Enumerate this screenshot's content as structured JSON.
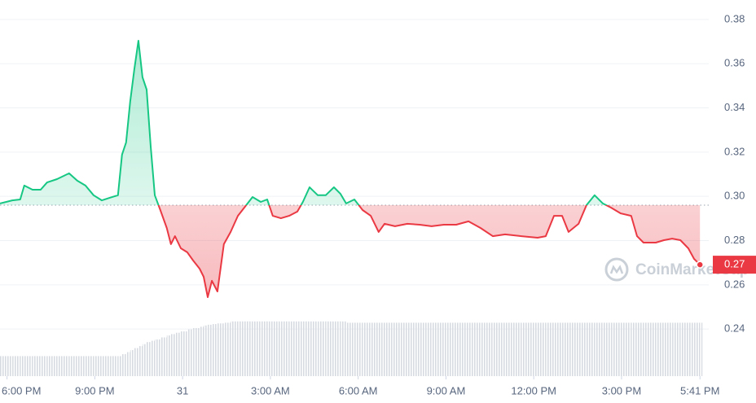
{
  "chart_data": {
    "type": "line",
    "watermark": "CoinMarketCap",
    "up_color": "#16c784",
    "down_color": "#ea3943",
    "reference": 0.296,
    "current_label": "0.27",
    "grid": true,
    "ylim": [
      0.2187,
      0.3888
    ],
    "yticks": [
      0.24,
      0.26,
      0.28,
      {
        "value": 0.3,
        "label": "0.30"
      },
      0.32,
      0.34,
      0.36,
      0.38
    ],
    "xlim": [
      -0.24,
      23.98
    ],
    "xticks": [
      {
        "value": 0,
        "label": "6:00 PM"
      },
      {
        "value": 3,
        "label": "9:00 PM"
      },
      {
        "value": 6,
        "label": "31"
      },
      {
        "value": 9,
        "label": "3:00 AM"
      },
      {
        "value": 12,
        "label": "6:00 AM"
      },
      {
        "value": 15,
        "label": "9:00 AM"
      },
      {
        "value": 18,
        "label": "12:00 PM"
      },
      {
        "value": 21,
        "label": "3:00 PM"
      },
      {
        "value": 23.68,
        "label": "5:41 PM"
      }
    ],
    "x": [
      -0.24,
      0.18,
      0.45,
      0.59,
      0.87,
      1.15,
      1.37,
      1.71,
      2.12,
      2.4,
      2.68,
      2.96,
      3.24,
      3.52,
      3.79,
      3.93,
      4.07,
      4.21,
      4.35,
      4.49,
      4.63,
      4.77,
      4.91,
      5.05,
      5.24,
      5.46,
      5.6,
      5.74,
      5.94,
      6.16,
      6.36,
      6.58,
      6.72,
      6.86,
      7.0,
      7.19,
      7.41,
      7.64,
      7.89,
      8.11,
      8.39,
      8.67,
      8.89,
      9.08,
      9.36,
      9.64,
      9.92,
      10.11,
      10.34,
      10.62,
      10.89,
      11.17,
      11.39,
      11.59,
      11.87,
      12.15,
      12.43,
      12.7,
      12.9,
      13.26,
      13.68,
      14.1,
      14.51,
      14.93,
      15.35,
      15.77,
      16.18,
      16.6,
      17.02,
      17.58,
      18.13,
      18.41,
      18.69,
      18.97,
      19.19,
      19.53,
      19.8,
      20.08,
      20.36,
      20.64,
      20.97,
      21.33,
      21.53,
      21.75,
      22.17,
      22.45,
      22.73,
      23.01,
      23.28,
      23.48,
      23.68
    ],
    "values": [
      0.2968,
      0.2982,
      0.2986,
      0.3049,
      0.303,
      0.303,
      0.3063,
      0.3078,
      0.3104,
      0.3071,
      0.3049,
      0.3005,
      0.2982,
      0.2994,
      0.3005,
      0.3189,
      0.3244,
      0.3428,
      0.3575,
      0.3704,
      0.3539,
      0.3483,
      0.3225,
      0.3005,
      0.2938,
      0.2857,
      0.2784,
      0.282,
      0.2765,
      0.2747,
      0.271,
      0.2673,
      0.2636,
      0.2544,
      0.2618,
      0.257,
      0.2784,
      0.2839,
      0.2912,
      0.2949,
      0.2997,
      0.2975,
      0.2986,
      0.2912,
      0.2901,
      0.2912,
      0.2931,
      0.2975,
      0.3041,
      0.3005,
      0.3005,
      0.3041,
      0.3012,
      0.2968,
      0.2986,
      0.2938,
      0.2912,
      0.2839,
      0.2876,
      0.2865,
      0.2876,
      0.2872,
      0.2865,
      0.2872,
      0.2872,
      0.2887,
      0.2857,
      0.282,
      0.2828,
      0.282,
      0.2813,
      0.282,
      0.2912,
      0.2912,
      0.2839,
      0.2876,
      0.296,
      0.3005,
      0.2968,
      0.2949,
      0.2923,
      0.2912,
      0.282,
      0.2791,
      0.2791,
      0.2802,
      0.2809,
      0.2802,
      0.2765,
      0.2717,
      0.2691
    ],
    "volume": {
      "ylim": [
        0,
        100
      ],
      "values": [
        30,
        30,
        30,
        30,
        30,
        30,
        30,
        30,
        30,
        30,
        30,
        30,
        30,
        30,
        30,
        33,
        36,
        39,
        42,
        45,
        48,
        51,
        53,
        55,
        58,
        61,
        63,
        65,
        67,
        70,
        72,
        74,
        76,
        77,
        78,
        79,
        80,
        82,
        82,
        82,
        82,
        82,
        82,
        82,
        82,
        82,
        82,
        82,
        82,
        82,
        82,
        82,
        82,
        80,
        80,
        80,
        80,
        80,
        80,
        80,
        80,
        80,
        80,
        80,
        80,
        80,
        80,
        80,
        80,
        80,
        80,
        80,
        80,
        80,
        80,
        80,
        80,
        80,
        80,
        80,
        80,
        80,
        80,
        80,
        80,
        80,
        80,
        80,
        80,
        80,
        80
      ]
    }
  }
}
